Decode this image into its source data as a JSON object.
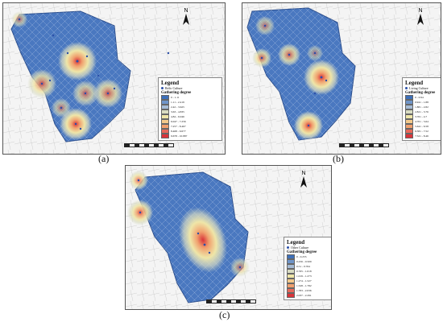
{
  "panels": [
    {
      "caption": "(a)",
      "legend": {
        "title": "Legend",
        "point_label": "Relic Culture",
        "scale_title": "Gathering degree",
        "classes": [
          "0 - 1.11",
          "1.11 - 2.419",
          "2.42 - 3.625",
          "3.63 - 4.835",
          "4.84 - 6.046",
          "6.047 - 7.256",
          "7.257 - 8.467",
          "8.468 - 9.677",
          "9.678 - 10.887"
        ]
      }
    },
    {
      "caption": "(b)",
      "legend": {
        "title": "Legend",
        "point_label": "Living Culture",
        "scale_title": "Gathering degree",
        "classes": [
          "0 - 0.94",
          "0.941 - 1.88",
          "1.881 - 2.82",
          "2.821 - 3.76",
          "3.761 - 4.7",
          "4.701 - 5.64",
          "5.641 - 6.58",
          "6.581 - 7.52",
          "7.521 - 8.46"
        ]
      }
    },
    {
      "caption": "(c)",
      "legend": {
        "title": "Legend",
        "point_label": "Other Culture",
        "scale_title": "Gathering degree",
        "classes": [
          "0 - 0.255",
          "0.256 - 0.509",
          "0.51 - 0.764",
          "0.765 - 1.018",
          "1.019 - 1.273",
          "1.274 - 1.527",
          "1.528 - 1.782",
          "1.783 - 2.036",
          "2.037 - 2.291"
        ]
      }
    }
  ],
  "north_label": "N",
  "colors": {
    "district": "#4a78c0",
    "ramp": [
      "#3d6fb8",
      "#6f95c9",
      "#a6bcd6",
      "#d9dcc2",
      "#efe6a8",
      "#f3c98b",
      "#f0a06e",
      "#e8695a",
      "#d9343a"
    ],
    "point": "#2b4fa8"
  }
}
